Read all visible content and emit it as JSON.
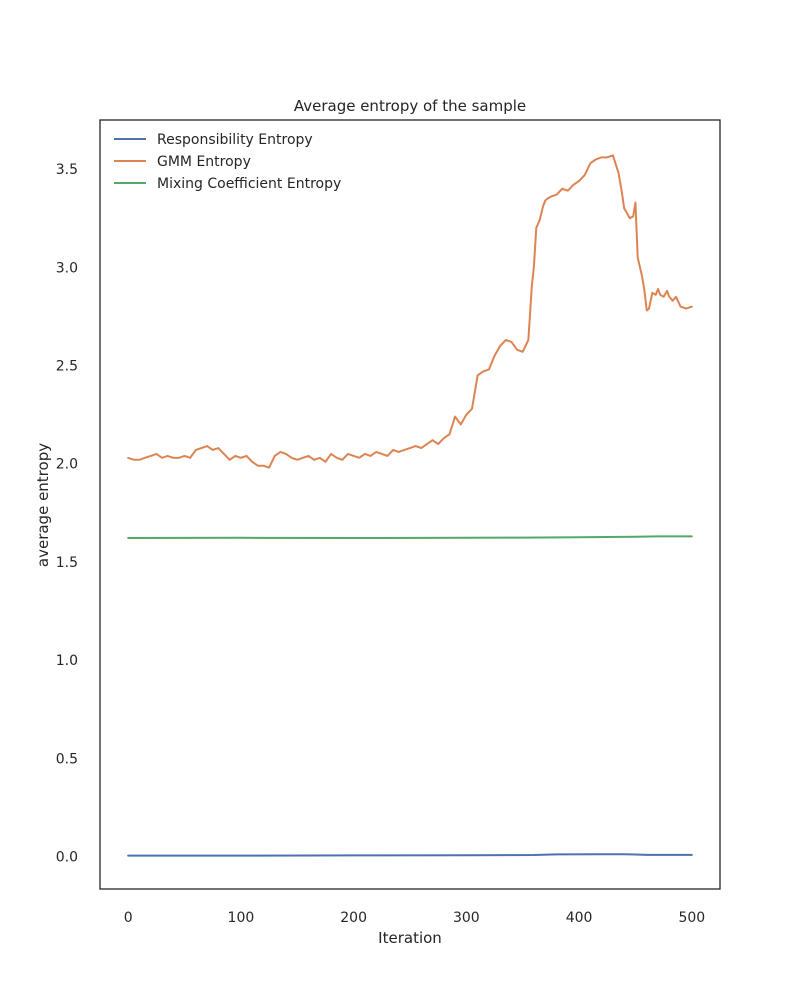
{
  "chart_data": {
    "type": "line",
    "title": "Average entropy of the sample",
    "xlabel": "Iteration",
    "ylabel": "average entropy",
    "xlim": [
      -25,
      525
    ],
    "ylim": [
      -0.165,
      3.75
    ],
    "xticks": [
      0,
      100,
      200,
      300,
      400,
      500
    ],
    "xtick_labels": [
      "0",
      "100",
      "200",
      "300",
      "400",
      "500"
    ],
    "yticks": [
      0.0,
      0.5,
      1.0,
      1.5,
      2.0,
      2.5,
      3.0,
      3.5
    ],
    "ytick_labels": [
      "0.0",
      "0.5",
      "1.0",
      "1.5",
      "2.0",
      "2.5",
      "3.0",
      "3.5"
    ],
    "grid": false,
    "legend_position": "top-left",
    "series": [
      {
        "name": "Responsibility Entropy",
        "color": "#4c72b0",
        "x": [
          0,
          100,
          200,
          300,
          360,
          380,
          420,
          440,
          460,
          500
        ],
        "y": [
          0.005,
          0.005,
          0.006,
          0.007,
          0.008,
          0.011,
          0.012,
          0.012,
          0.009,
          0.009
        ]
      },
      {
        "name": "GMM Entropy",
        "color": "#dd8452",
        "x": [
          0,
          5,
          10,
          15,
          20,
          25,
          30,
          35,
          40,
          45,
          50,
          55,
          60,
          65,
          70,
          75,
          80,
          85,
          90,
          95,
          100,
          105,
          110,
          115,
          120,
          125,
          130,
          135,
          140,
          145,
          150,
          155,
          160,
          165,
          170,
          175,
          180,
          185,
          190,
          195,
          200,
          205,
          210,
          215,
          220,
          225,
          230,
          235,
          240,
          245,
          250,
          255,
          260,
          265,
          270,
          275,
          280,
          285,
          290,
          295,
          300,
          305,
          310,
          315,
          320,
          325,
          330,
          335,
          340,
          345,
          350,
          355,
          358,
          360,
          362,
          365,
          368,
          370,
          372,
          375,
          380,
          385,
          390,
          395,
          400,
          405,
          410,
          415,
          420,
          425,
          430,
          435,
          438,
          440,
          443,
          445,
          448,
          450,
          452,
          454,
          456,
          458,
          460,
          462,
          465,
          468,
          470,
          472,
          475,
          478,
          480,
          483,
          486,
          490,
          495,
          500
        ],
        "y": [
          2.03,
          2.02,
          2.02,
          2.03,
          2.04,
          2.05,
          2.03,
          2.04,
          2.03,
          2.03,
          2.04,
          2.03,
          2.07,
          2.08,
          2.09,
          2.07,
          2.08,
          2.05,
          2.02,
          2.04,
          2.03,
          2.04,
          2.01,
          1.99,
          1.99,
          1.98,
          2.04,
          2.06,
          2.05,
          2.03,
          2.02,
          2.03,
          2.04,
          2.02,
          2.03,
          2.01,
          2.05,
          2.03,
          2.02,
          2.05,
          2.04,
          2.03,
          2.05,
          2.04,
          2.06,
          2.05,
          2.04,
          2.07,
          2.06,
          2.07,
          2.08,
          2.09,
          2.08,
          2.1,
          2.12,
          2.1,
          2.13,
          2.15,
          2.24,
          2.2,
          2.25,
          2.28,
          2.45,
          2.47,
          2.48,
          2.55,
          2.6,
          2.63,
          2.62,
          2.58,
          2.57,
          2.63,
          2.9,
          3.01,
          3.2,
          3.24,
          3.31,
          3.34,
          3.35,
          3.36,
          3.37,
          3.4,
          3.39,
          3.42,
          3.44,
          3.47,
          3.53,
          3.55,
          3.56,
          3.56,
          3.57,
          3.48,
          3.38,
          3.3,
          3.27,
          3.25,
          3.26,
          3.33,
          3.05,
          3.0,
          2.95,
          2.88,
          2.78,
          2.79,
          2.87,
          2.86,
          2.89,
          2.86,
          2.85,
          2.88,
          2.85,
          2.83,
          2.85,
          2.8,
          2.79,
          2.8
        ]
      },
      {
        "name": "Mixing Coefficient Entropy",
        "color": "#55a868",
        "x": [
          0,
          100,
          200,
          300,
          350,
          400,
          450,
          470,
          500
        ],
        "y": [
          1.622,
          1.623,
          1.622,
          1.623,
          1.624,
          1.626,
          1.628,
          1.63,
          1.63
        ]
      }
    ]
  }
}
